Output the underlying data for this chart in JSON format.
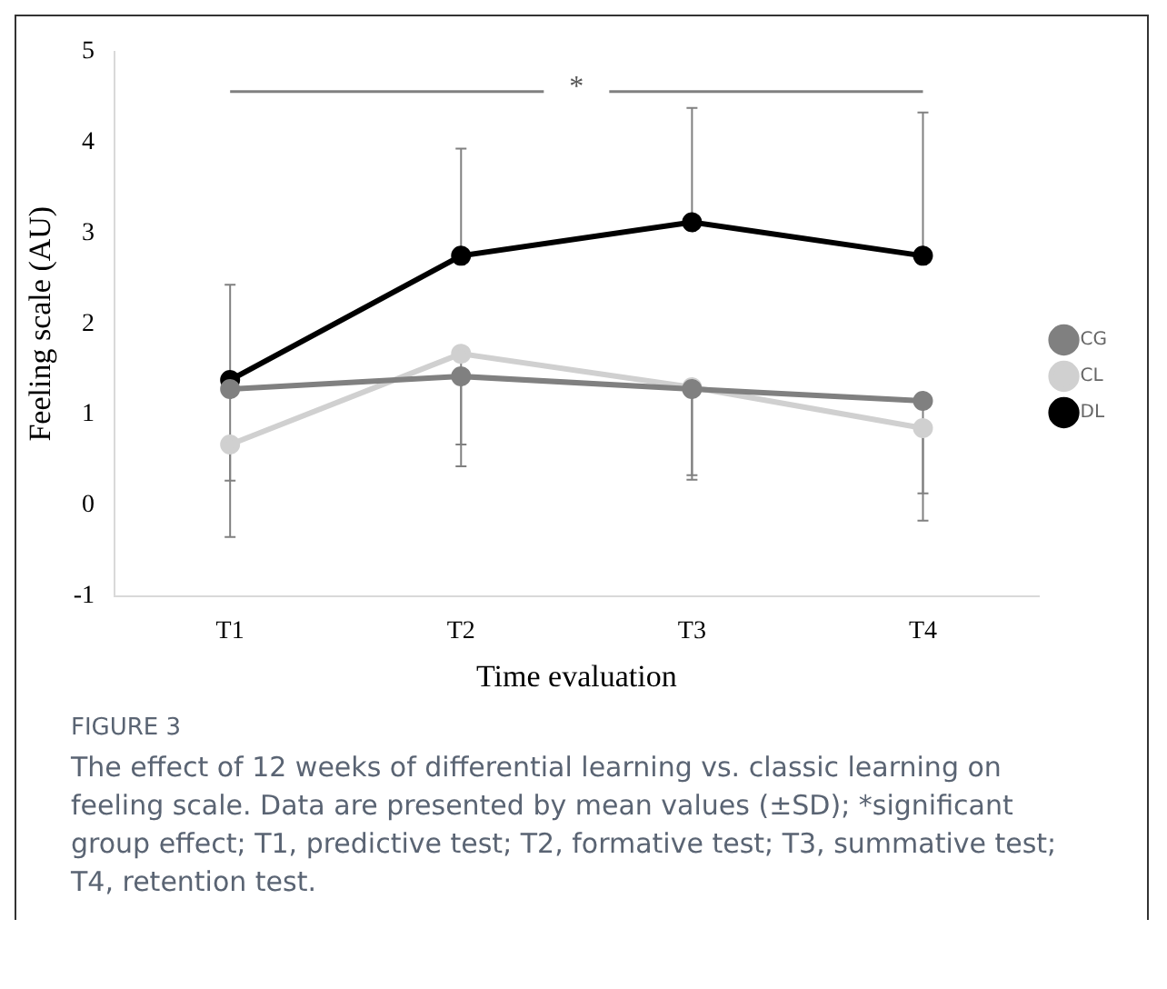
{
  "chart_data": {
    "type": "line",
    "xlabel": "Time evaluation",
    "ylabel": "Feeling scale (AU)",
    "categories": [
      "T1",
      "T2",
      "T3",
      "T4"
    ],
    "series": [
      {
        "name": "DL",
        "color": "#000000",
        "values": [
          1.38,
          2.75,
          3.12,
          2.75
        ],
        "errors": [
          [
            1.38,
            2.43
          ],
          [
            2.75,
            3.93
          ],
          [
            3.12,
            4.38
          ],
          [
            2.75,
            4.33
          ]
        ]
      },
      {
        "name": "CL",
        "color": "#d0d0d0",
        "values": [
          0.67,
          1.67,
          1.3,
          0.85
        ],
        "errors": [
          [
            -0.35,
            0.67
          ],
          [
            0.43,
            1.67
          ],
          [
            0.28,
            1.3
          ],
          [
            -0.17,
            0.85
          ]
        ]
      },
      {
        "name": "CG",
        "color": "#808080",
        "values": [
          1.28,
          1.42,
          1.28,
          1.15
        ],
        "errors": [
          [
            0.27,
            1.28
          ],
          [
            0.67,
            1.42
          ],
          [
            0.33,
            1.28
          ],
          [
            0.13,
            1.15
          ]
        ]
      }
    ],
    "ylim": [
      -1,
      5
    ],
    "yticks": [
      -1,
      0,
      1,
      2,
      3,
      4,
      5
    ],
    "grid": false,
    "legend": "right",
    "marker": "circle",
    "line_style": "solid",
    "annotations": [
      "*",
      "FIGURE 3",
      "The effect of 12 weeks of differential learning vs. classic learning on feeling scale. Data are presented by mean values (±SD); *significant group effect; T1, predictive test; T2, formative test; T3, summative test; T4, retention test."
    ]
  }
}
